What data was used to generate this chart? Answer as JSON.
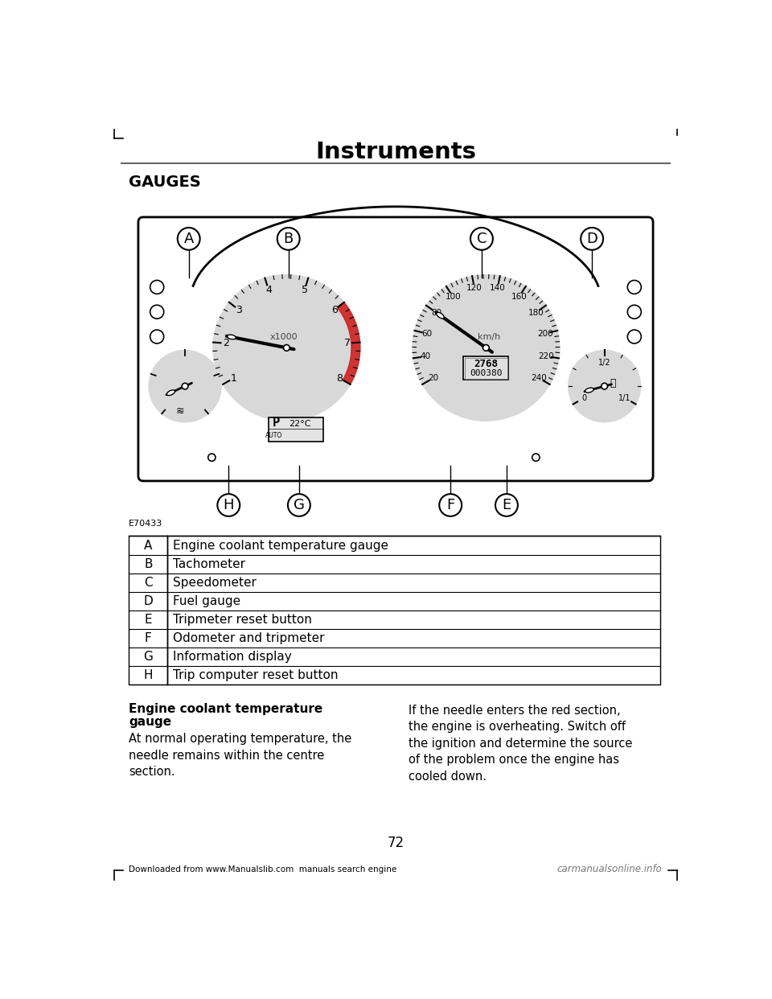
{
  "page_title": "Instruments",
  "section_title": "GAUGES",
  "figure_label": "E70433",
  "table_rows": [
    [
      "A",
      "Engine coolant temperature gauge"
    ],
    [
      "B",
      "Tachometer"
    ],
    [
      "C",
      "Speedometer"
    ],
    [
      "D",
      "Fuel gauge"
    ],
    [
      "E",
      "Tripmeter reset button"
    ],
    [
      "F",
      "Odometer and tripmeter"
    ],
    [
      "G",
      "Information display"
    ],
    [
      "H",
      "Trip computer reset button"
    ]
  ],
  "subtitle_left": "Engine coolant temperature\ngauge",
  "body_left": "At normal operating temperature, the\nneedle remains within the centre\nsection.",
  "body_right": "If the needle enters the red section,\nthe engine is overheating. Switch off\nthe ignition and determine the source\nof the problem once the engine has\ncooled down.",
  "page_number": "72",
  "footer_left": "Downloaded from www.Manualslib.com  manuals search engine",
  "footer_right": "carmanualsonline.info",
  "bg_color": "#ffffff",
  "text_color": "#000000",
  "gauge_face": "#d8d8d8",
  "cluster_fill": "#ffffff"
}
